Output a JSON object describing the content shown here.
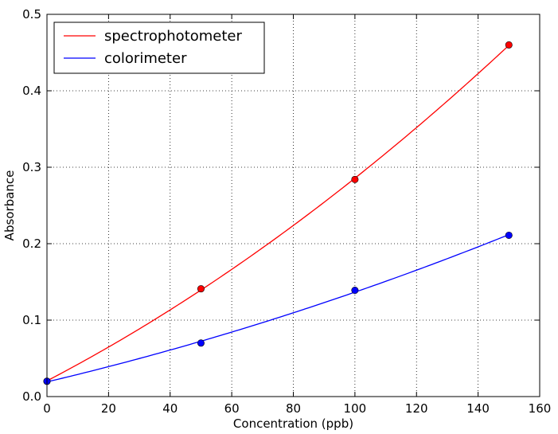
{
  "chart_data": {
    "type": "line",
    "title": "",
    "xlabel": "Concentration (ppb)",
    "ylabel": "Absorbance",
    "xlim": [
      0,
      160
    ],
    "ylim": [
      0,
      0.5
    ],
    "xticks": [
      0,
      20,
      40,
      60,
      80,
      100,
      120,
      140,
      160
    ],
    "yticks": [
      0.0,
      0.1,
      0.2,
      0.3,
      0.4,
      0.5
    ],
    "xtick_labels": [
      "0",
      "20",
      "40",
      "60",
      "80",
      "100",
      "120",
      "140",
      "160"
    ],
    "ytick_labels": [
      "0.0",
      "0.1",
      "0.2",
      "0.3",
      "0.4",
      "0.5"
    ],
    "grid": true,
    "legend_position": "top-left",
    "series": [
      {
        "name": "spectrophotometer",
        "color": "#ff0000",
        "x": [
          0,
          50,
          100,
          150
        ],
        "y": [
          0.02,
          0.141,
          0.284,
          0.46
        ]
      },
      {
        "name": "colorimeter",
        "color": "#0000ff",
        "x": [
          0,
          50,
          100,
          150
        ],
        "y": [
          0.02,
          0.07,
          0.139,
          0.211
        ]
      }
    ]
  }
}
